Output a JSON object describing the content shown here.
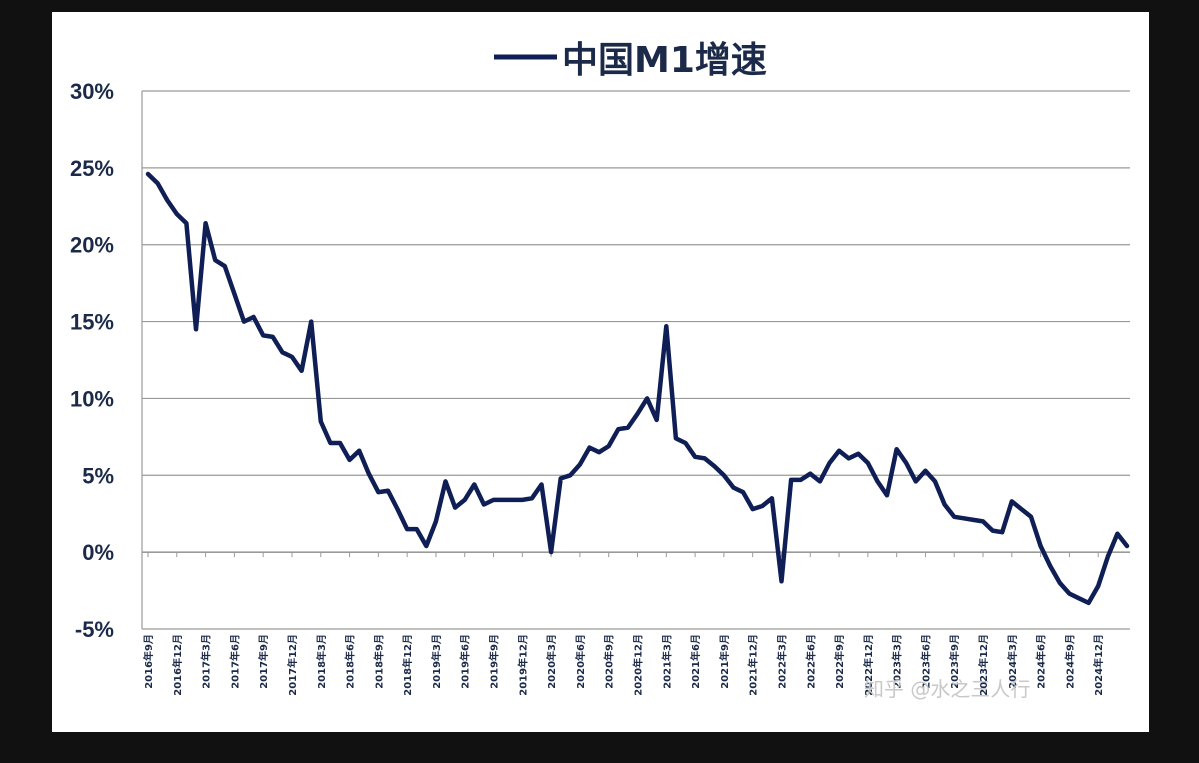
{
  "colors": {
    "series": "#0f1f55",
    "grid": "#9a9a9a",
    "text": "#1c2a4a"
  },
  "watermark": "知乎 @水之三人行",
  "chart_data": {
    "type": "line",
    "title": "中国M1增速",
    "xlabel": "",
    "ylabel": "",
    "ylim": [
      -5,
      30
    ],
    "y_ticks": [
      30,
      25,
      20,
      15,
      10,
      5,
      0,
      -5
    ],
    "y_tick_labels": [
      "30%",
      "25%",
      "20%",
      "15%",
      "10%",
      "5%",
      "0%",
      "-5%"
    ],
    "grid": true,
    "legend": {
      "position": "top-center"
    },
    "series": [
      {
        "name": "中国M1增速",
        "values": [
          24.6,
          24.0,
          22.9,
          22.0,
          21.4,
          14.5,
          21.4,
          19.0,
          18.6,
          16.8,
          15.0,
          15.3,
          14.1,
          14.0,
          13.0,
          12.7,
          11.8,
          15.0,
          8.5,
          7.1,
          7.1,
          6.0,
          6.6,
          5.1,
          3.9,
          4.0,
          2.8,
          1.5,
          1.5,
          0.4,
          2.0,
          4.6,
          2.9,
          3.4,
          4.4,
          3.1,
          3.4,
          3.4,
          3.4,
          3.4,
          3.5,
          4.4,
          0.0,
          4.8,
          5.0,
          5.7,
          6.8,
          6.5,
          6.9,
          8.0,
          8.1,
          9.0,
          10.0,
          8.6,
          14.7,
          7.4,
          7.1,
          6.2,
          6.1,
          5.6,
          5.0,
          4.2,
          3.9,
          2.8,
          3.0,
          3.5,
          -1.9,
          4.7,
          4.7,
          5.1,
          4.6,
          5.8,
          6.6,
          6.1,
          6.4,
          5.8,
          4.6,
          3.7,
          6.7,
          5.8,
          4.6,
          5.3,
          4.6,
          3.1,
          2.3,
          2.2,
          2.1,
          2.0,
          1.4,
          1.3,
          3.3,
          2.8,
          2.3,
          0.4,
          -0.9,
          -2.0,
          -2.7,
          -3.0,
          -3.3,
          -2.2,
          -0.3,
          1.2,
          0.4
        ]
      }
    ],
    "x_ticks": [
      {
        "index": 0,
        "label": "2016年9月"
      },
      {
        "index": 3,
        "label": "2016年12月"
      },
      {
        "index": 6,
        "label": "2017年3月"
      },
      {
        "index": 9,
        "label": "2017年6月"
      },
      {
        "index": 12,
        "label": "2017年9月"
      },
      {
        "index": 15,
        "label": "2017年12月"
      },
      {
        "index": 18,
        "label": "2018年3月"
      },
      {
        "index": 21,
        "label": "2018年6月"
      },
      {
        "index": 24,
        "label": "2018年9月"
      },
      {
        "index": 27,
        "label": "2018年12月"
      },
      {
        "index": 30,
        "label": "2019年3月"
      },
      {
        "index": 33,
        "label": "2019年6月"
      },
      {
        "index": 36,
        "label": "2019年9月"
      },
      {
        "index": 39,
        "label": "2019年12月"
      },
      {
        "index": 42,
        "label": "2020年3月"
      },
      {
        "index": 45,
        "label": "2020年6月"
      },
      {
        "index": 48,
        "label": "2020年9月"
      },
      {
        "index": 51,
        "label": "2020年12月"
      },
      {
        "index": 54,
        "label": "2021年3月"
      },
      {
        "index": 57,
        "label": "2021年6月"
      },
      {
        "index": 60,
        "label": "2021年9月"
      },
      {
        "index": 63,
        "label": "2021年12月"
      },
      {
        "index": 66,
        "label": "2022年3月"
      },
      {
        "index": 69,
        "label": "2022年6月"
      },
      {
        "index": 72,
        "label": "2022年9月"
      },
      {
        "index": 75,
        "label": "2022年12月"
      },
      {
        "index": 78,
        "label": "2023年3月"
      },
      {
        "index": 81,
        "label": "2023年6月"
      },
      {
        "index": 84,
        "label": "2023年9月"
      },
      {
        "index": 87,
        "label": "2023年12月"
      },
      {
        "index": 90,
        "label": "2024年3月"
      },
      {
        "index": 93,
        "label": "2024年6月"
      },
      {
        "index": 96,
        "label": "2024年9月"
      },
      {
        "index": 99,
        "label": "2024年12月"
      }
    ]
  }
}
